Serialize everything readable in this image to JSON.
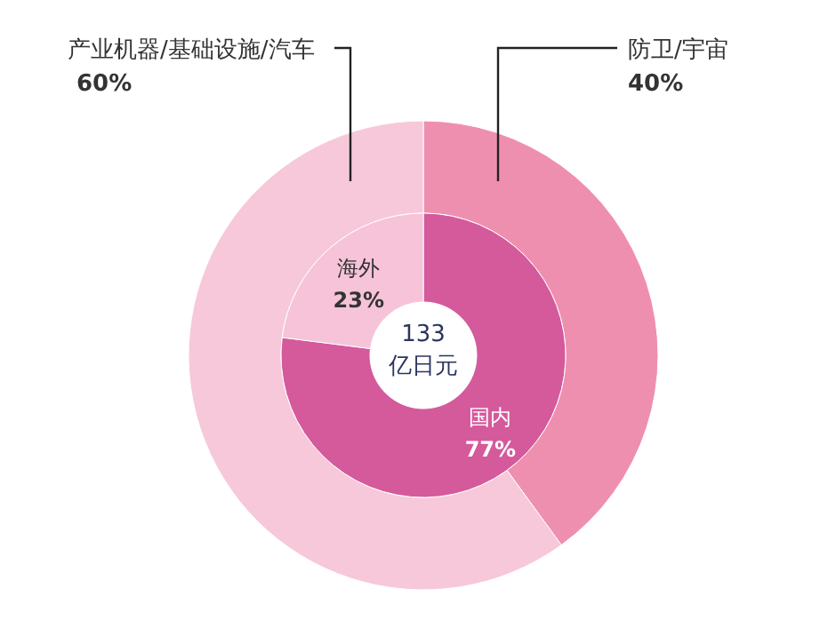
{
  "chart_data": [
    {
      "type": "donut",
      "categories": [
        "防卫/宇宙",
        "产业机器/基础设施/汽车"
      ],
      "values": [
        40,
        60
      ],
      "colors": [
        "#ef8fb0",
        "#f7c8d9"
      ],
      "value_labels": [
        "40%",
        "60%"
      ]
    },
    {
      "type": "donut",
      "categories": [
        "国内",
        "海外"
      ],
      "values": [
        77,
        23
      ],
      "colors": [
        "#d45a9c",
        "#f6c3d8"
      ],
      "value_labels": [
        "77%",
        "23%"
      ],
      "annotations": [
        "133",
        "亿日元"
      ]
    }
  ]
}
